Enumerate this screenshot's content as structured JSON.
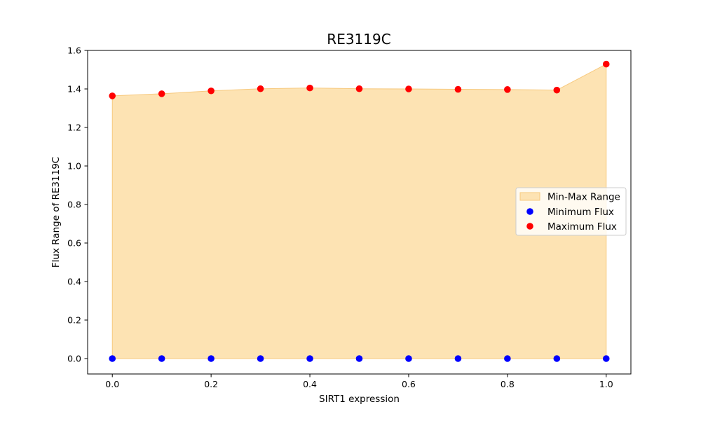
{
  "chart_data": {
    "type": "scatter",
    "title": "RE3119C",
    "xlabel": "SIRT1 expression",
    "ylabel": "Flux Range of RE3119C",
    "xlim": [
      -0.05,
      1.05
    ],
    "ylim": [
      -0.08,
      1.6
    ],
    "grid": false,
    "legend_position": "center-right",
    "x": [
      0.0,
      0.1,
      0.2,
      0.3,
      0.4,
      0.5,
      0.6,
      0.7,
      0.8,
      0.9,
      1.0
    ],
    "x_ticks": [
      "0.0",
      "0.2",
      "0.4",
      "0.6",
      "0.8",
      "1.0"
    ],
    "y_ticks": [
      "0.0",
      "0.2",
      "0.4",
      "0.6",
      "0.8",
      "1.0",
      "1.2",
      "1.4",
      "1.6"
    ],
    "fill": {
      "name": "Min-Max Range",
      "color": "#fde3b3",
      "edge_color": "#f7c97e"
    },
    "series": [
      {
        "name": "Minimum Flux",
        "color": "#0000ff",
        "values": [
          0,
          0,
          0,
          0,
          0,
          0,
          0,
          0,
          0,
          0,
          0
        ]
      },
      {
        "name": "Maximum Flux",
        "color": "#ff0000",
        "values": [
          1.364,
          1.375,
          1.39,
          1.401,
          1.405,
          1.401,
          1.4,
          1.398,
          1.397,
          1.394,
          1.529
        ]
      }
    ]
  }
}
